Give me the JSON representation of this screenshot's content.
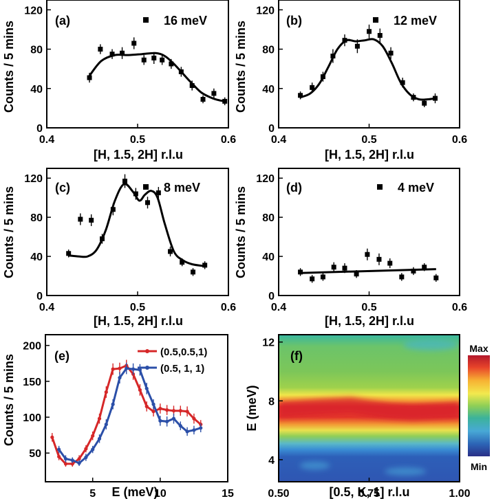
{
  "chart_data": [
    {
      "id": "a",
      "type": "scatter",
      "panel_label": "(a)",
      "annotation": "16 meV",
      "xlabel": "[H, 1.5, 2H] r.l.u",
      "ylabel": "Counts / 5 mins",
      "xlim": [
        0.4,
        0.6
      ],
      "ylim": [
        0,
        130
      ],
      "xticks": [
        "0.4",
        "0.5",
        "0.6"
      ],
      "yticks": [
        "0",
        "40",
        "80",
        "120"
      ],
      "points": {
        "x": [
          0.447,
          0.459,
          0.472,
          0.483,
          0.496,
          0.507,
          0.518,
          0.527,
          0.537,
          0.548,
          0.56,
          0.572,
          0.584,
          0.596
        ],
        "y": [
          51,
          80,
          75,
          76,
          86,
          69,
          71,
          69,
          65,
          57,
          43,
          29,
          35,
          27
        ],
        "err": [
          5,
          5,
          5,
          6,
          6,
          5,
          6,
          5,
          5,
          5,
          5,
          4,
          5,
          4
        ]
      },
      "fit": {
        "x": [
          0.447,
          0.46,
          0.475,
          0.49,
          0.505,
          0.52,
          0.53,
          0.54,
          0.55,
          0.56,
          0.57,
          0.58,
          0.59,
          0.598
        ],
        "y": [
          53,
          68,
          74,
          74,
          75,
          76,
          73,
          65,
          55,
          45,
          36,
          31,
          28,
          27
        ]
      }
    },
    {
      "id": "b",
      "type": "scatter",
      "panel_label": "(b)",
      "annotation": "12 meV",
      "xlabel": "[H, 1.5, 2H] r.l.u",
      "ylabel": "Counts / 5 mins",
      "xlim": [
        0.4,
        0.6
      ],
      "ylim": [
        0,
        130
      ],
      "xticks": [
        "0.4",
        "0.5",
        "0.6"
      ],
      "yticks": [
        "0",
        "40",
        "80",
        "120"
      ],
      "points": {
        "x": [
          0.424,
          0.437,
          0.449,
          0.46,
          0.473,
          0.487,
          0.5,
          0.512,
          0.524,
          0.537,
          0.549,
          0.561,
          0.573
        ],
        "y": [
          33,
          41,
          52,
          73,
          89,
          83,
          98,
          94,
          76,
          46,
          31,
          25,
          30
        ],
        "err": [
          4,
          5,
          5,
          7,
          6,
          7,
          7,
          7,
          6,
          5,
          4,
          4,
          5
        ]
      },
      "fit": {
        "x": [
          0.424,
          0.435,
          0.445,
          0.455,
          0.465,
          0.475,
          0.485,
          0.495,
          0.505,
          0.515,
          0.525,
          0.535,
          0.545,
          0.555,
          0.565,
          0.573
        ],
        "y": [
          31,
          35,
          45,
          62,
          80,
          89,
          88,
          89,
          90,
          83,
          66,
          46,
          34,
          29,
          29,
          30
        ]
      }
    },
    {
      "id": "c",
      "type": "scatter",
      "panel_label": "(c)",
      "annotation": "8 meV",
      "xlabel": "[H, 1.5, 2H] r.l.u",
      "ylabel": "Counts / 5 mins",
      "xlim": [
        0.4,
        0.6
      ],
      "ylim": [
        0,
        130
      ],
      "xticks": [
        "0.4",
        "0.5",
        "0.6"
      ],
      "yticks": [
        "0",
        "40",
        "80",
        "120"
      ],
      "points": {
        "x": [
          0.424,
          0.437,
          0.449,
          0.461,
          0.473,
          0.486,
          0.498,
          0.511,
          0.523,
          0.536,
          0.549,
          0.561,
          0.574
        ],
        "y": [
          43,
          78,
          77,
          58,
          88,
          117,
          104,
          95,
          105,
          45,
          34,
          24,
          31
        ],
        "err": [
          4,
          6,
          6,
          5,
          6,
          7,
          6,
          6,
          6,
          5,
          4,
          4,
          4
        ]
      },
      "fit": {
        "x": [
          0.424,
          0.435,
          0.445,
          0.455,
          0.465,
          0.475,
          0.485,
          0.495,
          0.502,
          0.508,
          0.515,
          0.522,
          0.53,
          0.54,
          0.55,
          0.56,
          0.574
        ],
        "y": [
          41,
          40,
          40,
          47,
          67,
          97,
          114,
          106,
          97,
          103,
          107,
          100,
          73,
          45,
          36,
          32,
          30
        ]
      }
    },
    {
      "id": "d",
      "type": "scatter",
      "panel_label": "(d)",
      "annotation": "4 meV",
      "xlabel": "[H, 1.5, 2H] r.l.u",
      "ylabel": "Counts / 5 mins",
      "xlim": [
        0.4,
        0.6
      ],
      "ylim": [
        0,
        130
      ],
      "xticks": [
        "0.4",
        "0.5",
        "0.6"
      ],
      "yticks": [
        "0",
        "40",
        "80",
        "120"
      ],
      "points": {
        "x": [
          0.424,
          0.437,
          0.449,
          0.461,
          0.473,
          0.486,
          0.498,
          0.511,
          0.523,
          0.536,
          0.549,
          0.561,
          0.574
        ],
        "y": [
          24,
          17,
          19,
          29,
          28,
          22,
          42,
          37,
          33,
          19,
          25,
          29,
          18
        ],
        "err": [
          4,
          4,
          4,
          5,
          5,
          4,
          6,
          6,
          5,
          4,
          4,
          4,
          4
        ]
      },
      "fit": {
        "x": [
          0.424,
          0.574
        ],
        "y": [
          23,
          27
        ]
      }
    },
    {
      "id": "e",
      "type": "line",
      "panel_label": "(e)",
      "xlabel": "E (meV)",
      "ylabel": "Counts / 5 mins",
      "xlim": [
        1.5,
        15
      ],
      "ylim": [
        10,
        215
      ],
      "xticks": [
        "5",
        "10",
        "15"
      ],
      "yticks": [
        "50",
        "100",
        "150",
        "200"
      ],
      "series": [
        {
          "name": "(0.5,0.5,1)",
          "color": "#d62728",
          "x": [
            2,
            2.5,
            3,
            3.5,
            4,
            4.5,
            5,
            5.5,
            6,
            6.5,
            7,
            7.5,
            8,
            8.5,
            9,
            9.5,
            10,
            10.5,
            11,
            11.5,
            12,
            12.5,
            13
          ],
          "y": [
            72,
            45,
            35,
            35,
            42,
            56,
            74,
            98,
            135,
            167,
            168,
            172,
            160,
            138,
            115,
            108,
            112,
            110,
            109,
            109,
            108,
            98,
            90
          ],
          "err": [
            6,
            5,
            4,
            4,
            5,
            5,
            6,
            7,
            8,
            8,
            8,
            8,
            8,
            8,
            7,
            7,
            7,
            7,
            7,
            7,
            7,
            7,
            6
          ]
        },
        {
          "name": "(0.5, 1,   1)",
          "color": "#2b4fa8",
          "x": [
            2.5,
            3,
            3.5,
            4,
            4.5,
            5,
            5.5,
            6,
            6.5,
            7,
            7.5,
            8,
            8.5,
            9,
            9.5,
            10,
            10.5,
            11,
            11.5,
            12,
            12.5,
            13
          ],
          "y": [
            55,
            42,
            40,
            36,
            44,
            55,
            70,
            90,
            118,
            155,
            168,
            167,
            166,
            140,
            118,
            95,
            94,
            98,
            88,
            80,
            82,
            85
          ],
          "err": [
            5,
            5,
            4,
            4,
            5,
            5,
            6,
            7,
            7,
            8,
            8,
            8,
            8,
            8,
            7,
            7,
            7,
            7,
            6,
            6,
            6,
            6
          ]
        }
      ]
    },
    {
      "id": "f",
      "type": "heatmap",
      "panel_label": "(f)",
      "xlabel": "[0.5, K, 1] r.l.u",
      "ylabel": "E (meV)",
      "xlim": [
        0.5,
        1.0
      ],
      "ylim": [
        2.5,
        12.5
      ],
      "xticks": [
        "0.50",
        "0.75",
        "1.00"
      ],
      "yticks": [
        "4",
        "8",
        "12"
      ],
      "colorbar": {
        "max_label": "Max",
        "min_label": "Min"
      },
      "band_center_meV": [
        7.4,
        7.5,
        7.6,
        7.7,
        7.5,
        7.3,
        7.2,
        7.3,
        7.4
      ],
      "band_k": [
        0.5,
        0.56,
        0.62,
        0.7,
        0.75,
        0.81,
        0.87,
        0.94,
        1.0
      ]
    }
  ]
}
